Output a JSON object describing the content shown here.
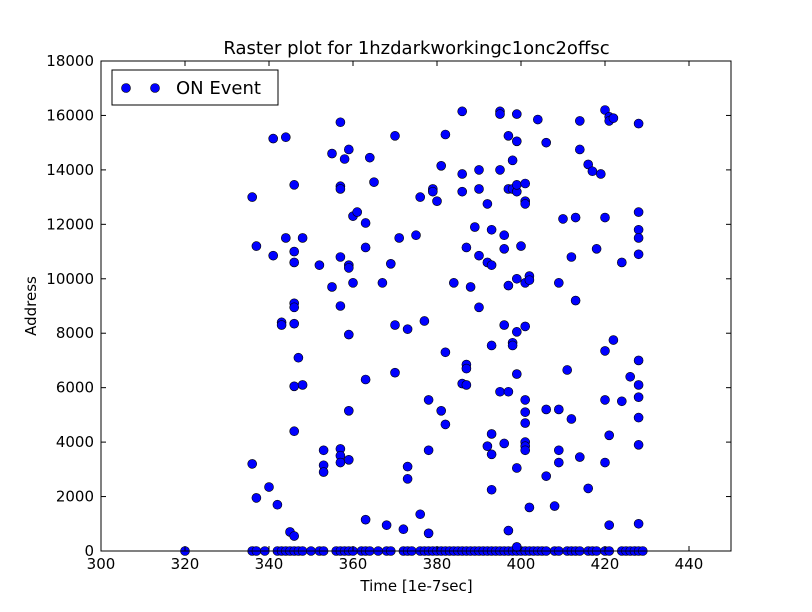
{
  "chart_data": {
    "type": "scatter",
    "title": "Raster plot for 1hzdarkworkingc1onc2offsc",
    "xlabel": "Time [1e-7sec]",
    "ylabel": "Address",
    "xlim": [
      300,
      450
    ],
    "ylim": [
      0,
      18000
    ],
    "xticks": [
      300,
      320,
      340,
      360,
      380,
      400,
      420,
      440
    ],
    "yticks": [
      0,
      2000,
      4000,
      6000,
      8000,
      10000,
      12000,
      14000,
      16000,
      18000
    ],
    "grid": false,
    "legend_position": "top-left",
    "series": [
      {
        "name": "ON Event",
        "color": "#0000ff",
        "marker": "circle",
        "points": [
          [
            320,
            0
          ],
          [
            336,
            0
          ],
          [
            337,
            0
          ],
          [
            339,
            0
          ],
          [
            342,
            0
          ],
          [
            343,
            0
          ],
          [
            344,
            0
          ],
          [
            345,
            0
          ],
          [
            346,
            0
          ],
          [
            347,
            0
          ],
          [
            348,
            0
          ],
          [
            350,
            0
          ],
          [
            352,
            0
          ],
          [
            353,
            0
          ],
          [
            356,
            0
          ],
          [
            357,
            0
          ],
          [
            358,
            0
          ],
          [
            359,
            0
          ],
          [
            360,
            0
          ],
          [
            362,
            0
          ],
          [
            363,
            0
          ],
          [
            364,
            0
          ],
          [
            366,
            0
          ],
          [
            368,
            0
          ],
          [
            369,
            0
          ],
          [
            372,
            0
          ],
          [
            373,
            0
          ],
          [
            374,
            0
          ],
          [
            376,
            0
          ],
          [
            377,
            0
          ],
          [
            378,
            0
          ],
          [
            379,
            0
          ],
          [
            380,
            0
          ],
          [
            381,
            0
          ],
          [
            382,
            0
          ],
          [
            383,
            0
          ],
          [
            384,
            0
          ],
          [
            385,
            0
          ],
          [
            386,
            0
          ],
          [
            387,
            0
          ],
          [
            388,
            0
          ],
          [
            389,
            0
          ],
          [
            390,
            0
          ],
          [
            391,
            0
          ],
          [
            392,
            0
          ],
          [
            393,
            0
          ],
          [
            394,
            0
          ],
          [
            395,
            0
          ],
          [
            396,
            0
          ],
          [
            397,
            0
          ],
          [
            398,
            0
          ],
          [
            399,
            0
          ],
          [
            400,
            0
          ],
          [
            401,
            0
          ],
          [
            402,
            0
          ],
          [
            403,
            0
          ],
          [
            404,
            0
          ],
          [
            405,
            0
          ],
          [
            406,
            0
          ],
          [
            408,
            0
          ],
          [
            409,
            0
          ],
          [
            411,
            0
          ],
          [
            412,
            0
          ],
          [
            413,
            0
          ],
          [
            414,
            0
          ],
          [
            416,
            0
          ],
          [
            417,
            0
          ],
          [
            418,
            0
          ],
          [
            420,
            0
          ],
          [
            421,
            0
          ],
          [
            424,
            0
          ],
          [
            425,
            0
          ],
          [
            426,
            0
          ],
          [
            427,
            0
          ],
          [
            428,
            0
          ],
          [
            429,
            0
          ],
          [
            336,
            13000
          ],
          [
            336,
            3200
          ],
          [
            337,
            11200
          ],
          [
            337,
            1950
          ],
          [
            340,
            2350
          ],
          [
            341,
            10850
          ],
          [
            341,
            15150
          ],
          [
            342,
            1700
          ],
          [
            343,
            8400
          ],
          [
            343,
            8300
          ],
          [
            344,
            15200
          ],
          [
            344,
            11500
          ],
          [
            345,
            700
          ],
          [
            346,
            13450
          ],
          [
            346,
            11000
          ],
          [
            346,
            10600
          ],
          [
            346,
            9100
          ],
          [
            346,
            8950
          ],
          [
            346,
            8350
          ],
          [
            346,
            6050
          ],
          [
            346,
            4400
          ],
          [
            346,
            550
          ],
          [
            347,
            7100
          ],
          [
            348,
            11500
          ],
          [
            348,
            6100
          ],
          [
            352,
            10500
          ],
          [
            353,
            3700
          ],
          [
            353,
            3150
          ],
          [
            353,
            2900
          ],
          [
            355,
            14600
          ],
          [
            355,
            9700
          ],
          [
            357,
            15750
          ],
          [
            357,
            13400
          ],
          [
            357,
            13300
          ],
          [
            357,
            10800
          ],
          [
            357,
            9000
          ],
          [
            357,
            3750
          ],
          [
            357,
            3500
          ],
          [
            357,
            3250
          ],
          [
            358,
            14400
          ],
          [
            359,
            14750
          ],
          [
            359,
            10500
          ],
          [
            359,
            10400
          ],
          [
            359,
            7950
          ],
          [
            359,
            5150
          ],
          [
            359,
            3350
          ],
          [
            360,
            12300
          ],
          [
            360,
            9850
          ],
          [
            361,
            12450
          ],
          [
            363,
            12050
          ],
          [
            363,
            11150
          ],
          [
            363,
            6300
          ],
          [
            363,
            1150
          ],
          [
            364,
            14450
          ],
          [
            365,
            13550
          ],
          [
            367,
            9850
          ],
          [
            368,
            950
          ],
          [
            369,
            10550
          ],
          [
            370,
            15250
          ],
          [
            370,
            8300
          ],
          [
            370,
            6550
          ],
          [
            371,
            11500
          ],
          [
            372,
            800
          ],
          [
            373,
            8150
          ],
          [
            373,
            3100
          ],
          [
            373,
            2650
          ],
          [
            375,
            11600
          ],
          [
            376,
            13000
          ],
          [
            376,
            1350
          ],
          [
            377,
            8450
          ],
          [
            378,
            5550
          ],
          [
            378,
            3700
          ],
          [
            378,
            650
          ],
          [
            379,
            13300
          ],
          [
            379,
            13200
          ],
          [
            380,
            12850
          ],
          [
            381,
            14150
          ],
          [
            381,
            5150
          ],
          [
            382,
            15300
          ],
          [
            382,
            7300
          ],
          [
            382,
            4650
          ],
          [
            384,
            9850
          ],
          [
            386,
            16150
          ],
          [
            386,
            13850
          ],
          [
            386,
            13200
          ],
          [
            386,
            6150
          ],
          [
            387,
            11150
          ],
          [
            387,
            6850
          ],
          [
            387,
            6700
          ],
          [
            387,
            6100
          ],
          [
            388,
            9700
          ],
          [
            389,
            11900
          ],
          [
            390,
            14000
          ],
          [
            390,
            13300
          ],
          [
            390,
            10850
          ],
          [
            390,
            8950
          ],
          [
            392,
            12750
          ],
          [
            392,
            10600
          ],
          [
            392,
            3850
          ],
          [
            393,
            11800
          ],
          [
            393,
            10500
          ],
          [
            393,
            7550
          ],
          [
            393,
            4300
          ],
          [
            393,
            3550
          ],
          [
            393,
            2250
          ],
          [
            395,
            16150
          ],
          [
            395,
            16050
          ],
          [
            395,
            14000
          ],
          [
            395,
            5850
          ],
          [
            396,
            11600
          ],
          [
            396,
            11100
          ],
          [
            396,
            8300
          ],
          [
            396,
            3950
          ],
          [
            397,
            15250
          ],
          [
            397,
            13300
          ],
          [
            397,
            9750
          ],
          [
            397,
            5850
          ],
          [
            397,
            750
          ],
          [
            398,
            14350
          ],
          [
            398,
            13300
          ],
          [
            398,
            7650
          ],
          [
            398,
            7550
          ],
          [
            399,
            16050
          ],
          [
            399,
            15050
          ],
          [
            399,
            13200
          ],
          [
            399,
            13450
          ],
          [
            399,
            10000
          ],
          [
            399,
            8050
          ],
          [
            399,
            6500
          ],
          [
            399,
            3050
          ],
          [
            399,
            150
          ],
          [
            400,
            11200
          ],
          [
            401,
            13500
          ],
          [
            401,
            12850
          ],
          [
            401,
            12750
          ],
          [
            401,
            9850
          ],
          [
            401,
            8250
          ],
          [
            401,
            5550
          ],
          [
            401,
            5100
          ],
          [
            401,
            4700
          ],
          [
            401,
            4000
          ],
          [
            401,
            3850
          ],
          [
            401,
            3700
          ],
          [
            402,
            10100
          ],
          [
            402,
            9950
          ],
          [
            402,
            1600
          ],
          [
            404,
            15850
          ],
          [
            406,
            15000
          ],
          [
            406,
            5200
          ],
          [
            406,
            2750
          ],
          [
            408,
            1650
          ],
          [
            409,
            9850
          ],
          [
            409,
            5200
          ],
          [
            409,
            3700
          ],
          [
            409,
            3250
          ],
          [
            410,
            12200
          ],
          [
            411,
            6650
          ],
          [
            412,
            10800
          ],
          [
            412,
            4850
          ],
          [
            413,
            12250
          ],
          [
            413,
            9200
          ],
          [
            414,
            15800
          ],
          [
            414,
            14750
          ],
          [
            414,
            3450
          ],
          [
            416,
            14200
          ],
          [
            416,
            2300
          ],
          [
            417,
            13950
          ],
          [
            418,
            11100
          ],
          [
            419,
            13850
          ],
          [
            420,
            16200
          ],
          [
            420,
            12250
          ],
          [
            420,
            7350
          ],
          [
            420,
            5550
          ],
          [
            420,
            3250
          ],
          [
            421,
            15950
          ],
          [
            421,
            15800
          ],
          [
            421,
            4250
          ],
          [
            421,
            950
          ],
          [
            422,
            15900
          ],
          [
            422,
            7750
          ],
          [
            424,
            10600
          ],
          [
            424,
            5500
          ],
          [
            426,
            6400
          ],
          [
            428,
            15700
          ],
          [
            428,
            12450
          ],
          [
            428,
            11800
          ],
          [
            428,
            11500
          ],
          [
            428,
            10900
          ],
          [
            428,
            7000
          ],
          [
            428,
            6100
          ],
          [
            428,
            5650
          ],
          [
            428,
            4900
          ],
          [
            428,
            3900
          ],
          [
            428,
            1000
          ]
        ]
      }
    ]
  }
}
